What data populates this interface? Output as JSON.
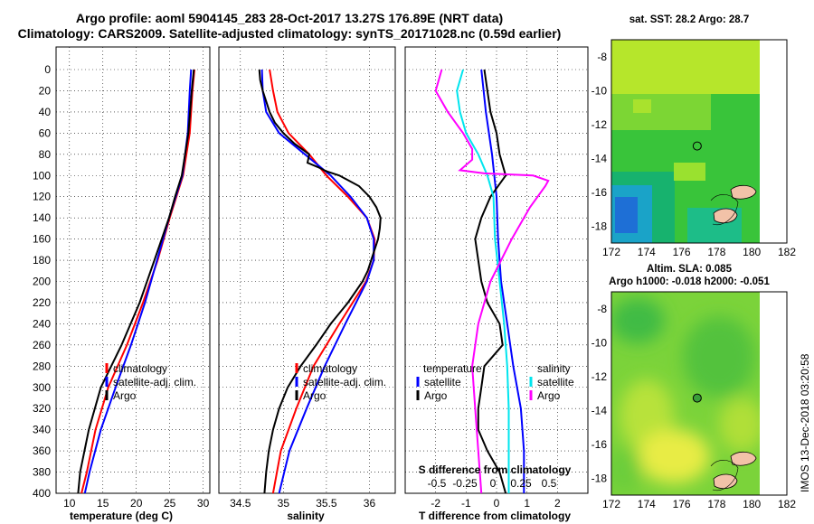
{
  "title": {
    "line1": "Argo profile: aoml 5904145_283 28-Oct-2017 13.27S 176.89E (NRT data)",
    "line2": "Climatology: CARS2009. Satellite-adjusted climatology: synTS_20171028.nc (0.59d earlier)"
  },
  "colors": {
    "climatology": "#ff0000",
    "satellite": "#0000ff",
    "argo": "#000000",
    "sal_sat": "#00e5ee",
    "sal_argo": "#ff00ff"
  },
  "chart_data": [
    {
      "type": "line",
      "name": "temperature-profile",
      "xlabel": "temperature (deg C)",
      "ylabel": "depth",
      "xlim": [
        8,
        31
      ],
      "ylim": [
        400,
        0
      ],
      "xticks": [
        10,
        15,
        20,
        25,
        30
      ],
      "yticks": [
        0,
        20,
        40,
        60,
        80,
        100,
        120,
        140,
        160,
        180,
        200,
        220,
        240,
        260,
        280,
        300,
        320,
        340,
        360,
        380,
        400
      ],
      "legend": [
        "climatology",
        "satellite-adj. clim.",
        "Argo"
      ],
      "series": [
        {
          "name": "climatology",
          "color": "#ff0000",
          "depth": [
            0,
            20,
            60,
            100,
            140,
            180,
            220,
            260,
            300,
            340,
            380,
            400
          ],
          "values": [
            28.7,
            28.4,
            28.0,
            27.0,
            25.0,
            23.2,
            21.0,
            18.6,
            15.8,
            13.9,
            12.6,
            11.8
          ]
        },
        {
          "name": "satellite-adj. clim.",
          "color": "#0000ff",
          "depth": [
            0,
            20,
            60,
            100,
            140,
            180,
            220,
            260,
            300,
            340,
            380,
            400
          ],
          "values": [
            28.2,
            28.0,
            27.7,
            26.9,
            24.9,
            23.1,
            21.3,
            19.2,
            16.9,
            14.7,
            13.0,
            12.3
          ]
        },
        {
          "name": "Argo",
          "color": "#000000",
          "depth": [
            0,
            20,
            60,
            100,
            120,
            140,
            180,
            220,
            260,
            300,
            340,
            380,
            400
          ],
          "values": [
            28.6,
            28.3,
            27.8,
            26.8,
            25.8,
            24.9,
            22.7,
            20.5,
            17.8,
            14.7,
            12.9,
            11.6,
            11.3
          ]
        }
      ]
    },
    {
      "type": "line",
      "name": "salinity-profile",
      "xlabel": "salinity",
      "xlim": [
        34.25,
        36.3
      ],
      "ylim": [
        400,
        0
      ],
      "xticks": [
        34.5,
        35,
        35.5,
        36
      ],
      "legend": [
        "climatology",
        "satellite-adj. clim.",
        "Argo"
      ],
      "series": [
        {
          "name": "climatology",
          "color": "#ff0000",
          "depth": [
            0,
            20,
            40,
            60,
            80,
            100,
            120,
            140,
            160,
            180,
            200,
            240,
            280,
            320,
            360,
            400
          ],
          "values": [
            34.84,
            34.88,
            34.93,
            35.06,
            35.3,
            35.5,
            35.75,
            35.97,
            36.06,
            36.05,
            35.96,
            35.65,
            35.35,
            35.15,
            34.97,
            34.88
          ]
        },
        {
          "name": "satellite-adj. clim.",
          "color": "#0000ff",
          "depth": [
            0,
            20,
            40,
            60,
            80,
            100,
            120,
            140,
            160,
            180,
            200,
            240,
            280,
            320,
            360,
            400
          ],
          "values": [
            34.75,
            34.76,
            34.8,
            34.95,
            35.25,
            35.55,
            35.78,
            35.97,
            36.05,
            36.05,
            35.97,
            35.72,
            35.48,
            35.27,
            35.07,
            34.95
          ]
        },
        {
          "name": "Argo",
          "color": "#000000",
          "depth": [
            0,
            10,
            20,
            30,
            40,
            50,
            60,
            70,
            80,
            88,
            92,
            96,
            100,
            110,
            120,
            130,
            140,
            150,
            160,
            170,
            180,
            190,
            200,
            220,
            240,
            260,
            280,
            300,
            320,
            340,
            360,
            380,
            400
          ],
          "values": [
            34.72,
            34.73,
            34.76,
            34.8,
            34.84,
            34.9,
            35.0,
            35.13,
            35.3,
            35.28,
            35.4,
            35.5,
            35.65,
            35.88,
            36.0,
            36.08,
            36.13,
            36.12,
            36.1,
            36.06,
            36.02,
            35.98,
            35.92,
            35.75,
            35.55,
            35.38,
            35.2,
            35.05,
            34.95,
            34.88,
            34.83,
            34.8,
            34.78
          ]
        }
      ]
    },
    {
      "type": "line",
      "name": "difference-profile",
      "xlabel": "T difference from climatology",
      "x2label": "S difference from climatology",
      "xlim": [
        -3,
        3
      ],
      "ylim": [
        400,
        0
      ],
      "xticks": [
        -2,
        -1,
        0,
        1,
        2
      ],
      "x2ticks": [
        "-0.5",
        "-0.25",
        "0",
        "0.25",
        "0.5"
      ],
      "legend_left_title": "temperature",
      "legend_right_title": "salinity",
      "legend_left": [
        "satellite",
        "Argo"
      ],
      "legend_right": [
        "satellite",
        "Argo"
      ],
      "series": [
        {
          "name": "T satellite",
          "color": "#0000ff",
          "depth": [
            0,
            40,
            80,
            120,
            160,
            200,
            240,
            280,
            320,
            360,
            400
          ],
          "values": [
            -0.5,
            -0.35,
            -0.15,
            0.0,
            0.05,
            0.15,
            0.35,
            0.55,
            0.8,
            0.9,
            0.9
          ]
        },
        {
          "name": "T Argo",
          "color": "#000000",
          "depth": [
            0,
            20,
            40,
            60,
            80,
            100,
            120,
            140,
            160,
            180,
            200,
            220,
            240,
            260,
            280,
            300,
            320,
            340,
            360,
            380,
            400
          ],
          "values": [
            -0.4,
            -0.3,
            -0.2,
            0.0,
            0.1,
            0.3,
            -0.2,
            -0.5,
            -0.7,
            -0.6,
            -0.5,
            -0.3,
            0.1,
            0.2,
            -0.4,
            -0.5,
            -0.6,
            -0.6,
            -0.3,
            0.1,
            0.3
          ]
        },
        {
          "name": "S satellite",
          "color": "#00e5ee",
          "depth": [
            0,
            20,
            40,
            60,
            80,
            100,
            120,
            160,
            200,
            240,
            280,
            320,
            360,
            400
          ],
          "values": [
            -1.1,
            -1.3,
            -1.2,
            -1.0,
            -0.6,
            -0.3,
            -0.1,
            -0.05,
            0.1,
            0.25,
            0.35,
            0.4,
            0.4,
            0.4
          ]
        },
        {
          "name": "S Argo",
          "color": "#ff00ff",
          "depth": [
            0,
            20,
            40,
            60,
            75,
            85,
            95,
            98,
            100,
            105,
            110,
            130,
            160,
            200,
            240,
            280,
            320,
            360,
            400
          ],
          "values": [
            -1.8,
            -2.0,
            -1.6,
            -1.1,
            -0.8,
            -0.8,
            -1.2,
            -0.4,
            1.2,
            1.7,
            1.6,
            1.1,
            0.5,
            -0.2,
            -0.6,
            -0.8,
            -0.7,
            -0.6,
            -0.5
          ]
        }
      ]
    }
  ],
  "maps": {
    "sst_title": "sat. SST: 28.2  Argo: 28.7",
    "sla_title1": "Altim. SLA: 0.085",
    "sla_title2": "Argo h1000: -0.018 h2000: -0.051",
    "xticks": [
      172,
      174,
      176,
      178,
      180,
      182
    ],
    "yticks": [
      -8,
      -10,
      -12,
      -14,
      -16,
      -18
    ],
    "argo_position": {
      "lon": 176.89,
      "lat": -13.27
    }
  },
  "credit": "IMOS 13-Dec-2018 03:20:58"
}
